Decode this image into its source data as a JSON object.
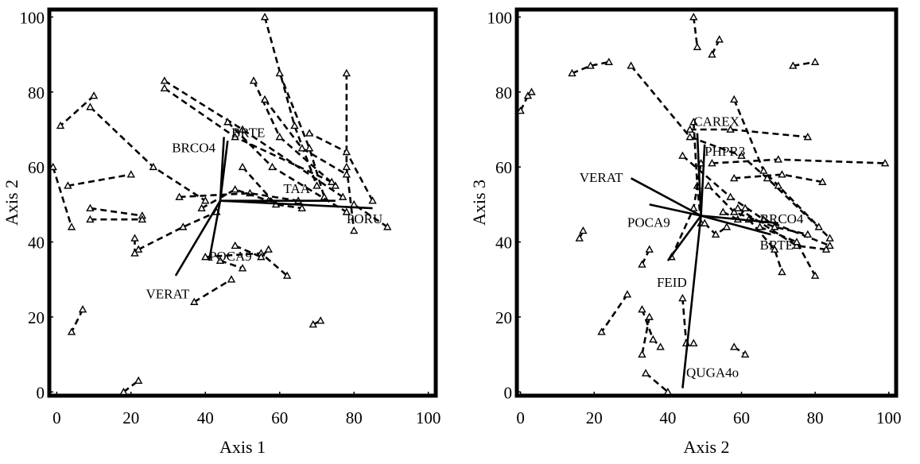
{
  "chart_data": [
    {
      "type": "scatter",
      "title": "",
      "xlabel": "Axis 1",
      "ylabel": "Axis 2",
      "xlim": [
        -2,
        102
      ],
      "ylim": [
        -1,
        102
      ],
      "xticks": [
        0,
        20,
        40,
        60,
        80,
        100
      ],
      "yticks": [
        0,
        20,
        40,
        60,
        80,
        100
      ],
      "grid": false,
      "vectors": {
        "origin": [
          44,
          51
        ],
        "items": [
          {
            "label": "BRCO4",
            "end": [
              46,
              67
            ],
            "label_pos": [
              31,
              64
            ]
          },
          {
            "label": "BRTE",
            "end": [
              45,
              68
            ],
            "label_pos": [
              47,
              68
            ]
          },
          {
            "label": "TAA",
            "end": [
              75,
              51
            ],
            "label_pos": [
              61,
              53
            ]
          },
          {
            "label": "PORU",
            "end": [
              85,
              49
            ],
            "label_pos": [
              78,
              45
            ]
          },
          {
            "label": "POCA9",
            "end": [
              41,
              35
            ],
            "label_pos": [
              41,
              35
            ]
          },
          {
            "label": "VERAT",
            "end": [
              32,
              31
            ],
            "label_pos": [
              24,
              25
            ]
          }
        ]
      },
      "trajectories": [
        [
          [
            56,
            100
          ],
          [
            64,
            71
          ],
          [
            70,
            55
          ]
        ],
        [
          [
            60,
            85
          ],
          [
            68,
            65
          ],
          [
            72,
            52
          ]
        ],
        [
          [
            78,
            85
          ],
          [
            78,
            60
          ],
          [
            80,
            43
          ]
        ],
        [
          [
            53,
            83
          ],
          [
            60,
            68
          ],
          [
            75,
            55
          ]
        ],
        [
          [
            56,
            78
          ],
          [
            66,
            65
          ],
          [
            78,
            58
          ]
        ],
        [
          [
            29,
            83
          ],
          [
            50,
            70
          ],
          [
            77,
            52
          ]
        ],
        [
          [
            29,
            81
          ],
          [
            48,
            68
          ],
          [
            74,
            56
          ]
        ],
        [
          [
            46,
            72
          ],
          [
            58,
            60
          ],
          [
            78,
            48
          ]
        ],
        [
          [
            10,
            79
          ],
          [
            1,
            71
          ]
        ],
        [
          [
            9,
            76
          ],
          [
            26,
            60
          ],
          [
            40,
            51
          ]
        ],
        [
          [
            -1,
            60
          ],
          [
            4,
            44
          ]
        ],
        [
          [
            3,
            55
          ],
          [
            20,
            58
          ]
        ],
        [
          [
            9,
            49
          ],
          [
            23,
            47
          ]
        ],
        [
          [
            9,
            46
          ],
          [
            23,
            46
          ]
        ],
        [
          [
            33,
            52
          ],
          [
            52,
            53
          ],
          [
            65,
            51
          ]
        ],
        [
          [
            50,
            60
          ],
          [
            59,
            50
          ],
          [
            66,
            49
          ]
        ],
        [
          [
            39,
            49
          ],
          [
            48,
            54
          ],
          [
            57,
            51
          ]
        ],
        [
          [
            22,
            38
          ],
          [
            34,
            44
          ],
          [
            43,
            48
          ]
        ],
        [
          [
            21,
            41
          ],
          [
            21,
            37
          ]
        ],
        [
          [
            40,
            36
          ],
          [
            55,
            37
          ],
          [
            62,
            31
          ]
        ],
        [
          [
            48,
            39
          ],
          [
            55,
            36
          ],
          [
            57,
            38
          ]
        ],
        [
          [
            44,
            35
          ],
          [
            50,
            33
          ]
        ],
        [
          [
            37,
            24
          ],
          [
            47,
            30
          ]
        ],
        [
          [
            7,
            22
          ],
          [
            4,
            16
          ]
        ],
        [
          [
            18,
            0
          ],
          [
            22,
            3
          ]
        ],
        [
          [
            69,
            18
          ],
          [
            71,
            19
          ]
        ],
        [
          [
            85,
            51
          ],
          [
            78,
            64
          ],
          [
            68,
            69
          ]
        ],
        [
          [
            89,
            44
          ],
          [
            80,
            50
          ]
        ]
      ]
    },
    {
      "type": "scatter",
      "title": "",
      "xlabel": "Axis 2",
      "ylabel": "Axis 3",
      "xlim": [
        -1,
        102
      ],
      "ylim": [
        -1,
        102
      ],
      "xticks": [
        0,
        20,
        40,
        60,
        80,
        100
      ],
      "yticks": [
        0,
        20,
        40,
        60,
        80,
        100
      ],
      "grid": false,
      "vectors": {
        "origin": [
          49,
          47
        ],
        "items": [
          {
            "label": "CAREX",
            "end": [
              48,
              69
            ],
            "label_pos": [
              47,
              71
            ]
          },
          {
            "label": "PHPR3",
            "end": [
              50,
              66
            ],
            "label_pos": [
              50,
              63
            ]
          },
          {
            "label": "VERAT",
            "end": [
              30,
              57
            ],
            "label_pos": [
              16,
              56
            ]
          },
          {
            "label": "POCA9",
            "end": [
              35,
              50
            ],
            "label_pos": [
              29,
              44
            ]
          },
          {
            "label": "BRCO4",
            "end": [
              70,
              45
            ],
            "label_pos": [
              65,
              45
            ]
          },
          {
            "label": "BRTE",
            "end": [
              68,
              42
            ],
            "label_pos": [
              65,
              38
            ]
          },
          {
            "label": "FEID",
            "end": [
              40,
              35
            ],
            "label_pos": [
              37,
              28
            ]
          },
          {
            "label": "QUGA4o",
            "end": [
              44,
              1
            ],
            "label_pos": [
              45,
              4
            ]
          }
        ]
      },
      "trajectories": [
        [
          [
            0,
            75
          ],
          [
            2,
            79
          ],
          [
            3,
            80
          ]
        ],
        [
          [
            14,
            85
          ],
          [
            19,
            87
          ],
          [
            24,
            88
          ]
        ],
        [
          [
            30,
            87
          ],
          [
            46,
            68
          ],
          [
            60,
            63
          ],
          [
            67,
            57
          ],
          [
            84,
            41
          ]
        ],
        [
          [
            46,
            70
          ],
          [
            57,
            70
          ],
          [
            78,
            68
          ]
        ],
        [
          [
            58,
            78
          ],
          [
            66,
            59
          ],
          [
            70,
            55
          ],
          [
            81,
            44
          ]
        ],
        [
          [
            52,
            61
          ],
          [
            70,
            62
          ],
          [
            99,
            61
          ]
        ],
        [
          [
            58,
            57
          ],
          [
            71,
            58
          ],
          [
            82,
            56
          ]
        ],
        [
          [
            44,
            63
          ],
          [
            57,
            52
          ],
          [
            66,
            46
          ],
          [
            84,
            39
          ]
        ],
        [
          [
            51,
            55
          ],
          [
            58,
            48
          ],
          [
            69,
            44
          ],
          [
            78,
            42
          ]
        ],
        [
          [
            59,
            49
          ],
          [
            75,
            39
          ],
          [
            83,
            38
          ]
        ],
        [
          [
            62,
            46
          ],
          [
            69,
            38
          ],
          [
            71,
            32
          ]
        ],
        [
          [
            65,
            44
          ],
          [
            75,
            40
          ],
          [
            80,
            31
          ]
        ],
        [
          [
            47,
            72
          ],
          [
            48,
            55
          ],
          [
            49,
            45
          ]
        ],
        [
          [
            49,
            61
          ],
          [
            47,
            49
          ],
          [
            41,
            36
          ]
        ],
        [
          [
            55,
            48
          ],
          [
            59,
            46
          ],
          [
            61,
            49
          ]
        ],
        [
          [
            50,
            45
          ],
          [
            53,
            42
          ],
          [
            56,
            44
          ]
        ],
        [
          [
            35,
            38
          ],
          [
            33,
            34
          ]
        ],
        [
          [
            16,
            41
          ],
          [
            17,
            43
          ]
        ],
        [
          [
            29,
            26
          ],
          [
            22,
            16
          ]
        ],
        [
          [
            33,
            22
          ],
          [
            36,
            14
          ],
          [
            38,
            12
          ]
        ],
        [
          [
            35,
            20
          ],
          [
            33,
            10
          ]
        ],
        [
          [
            44,
            25
          ],
          [
            45,
            13
          ],
          [
            47,
            13
          ]
        ],
        [
          [
            34,
            5
          ],
          [
            40,
            0
          ]
        ],
        [
          [
            58,
            12
          ],
          [
            61,
            10
          ]
        ],
        [
          [
            47,
            100
          ],
          [
            48,
            92
          ]
        ],
        [
          [
            54,
            94
          ],
          [
            52,
            90
          ]
        ],
        [
          [
            74,
            87
          ],
          [
            80,
            88
          ]
        ]
      ]
    }
  ]
}
